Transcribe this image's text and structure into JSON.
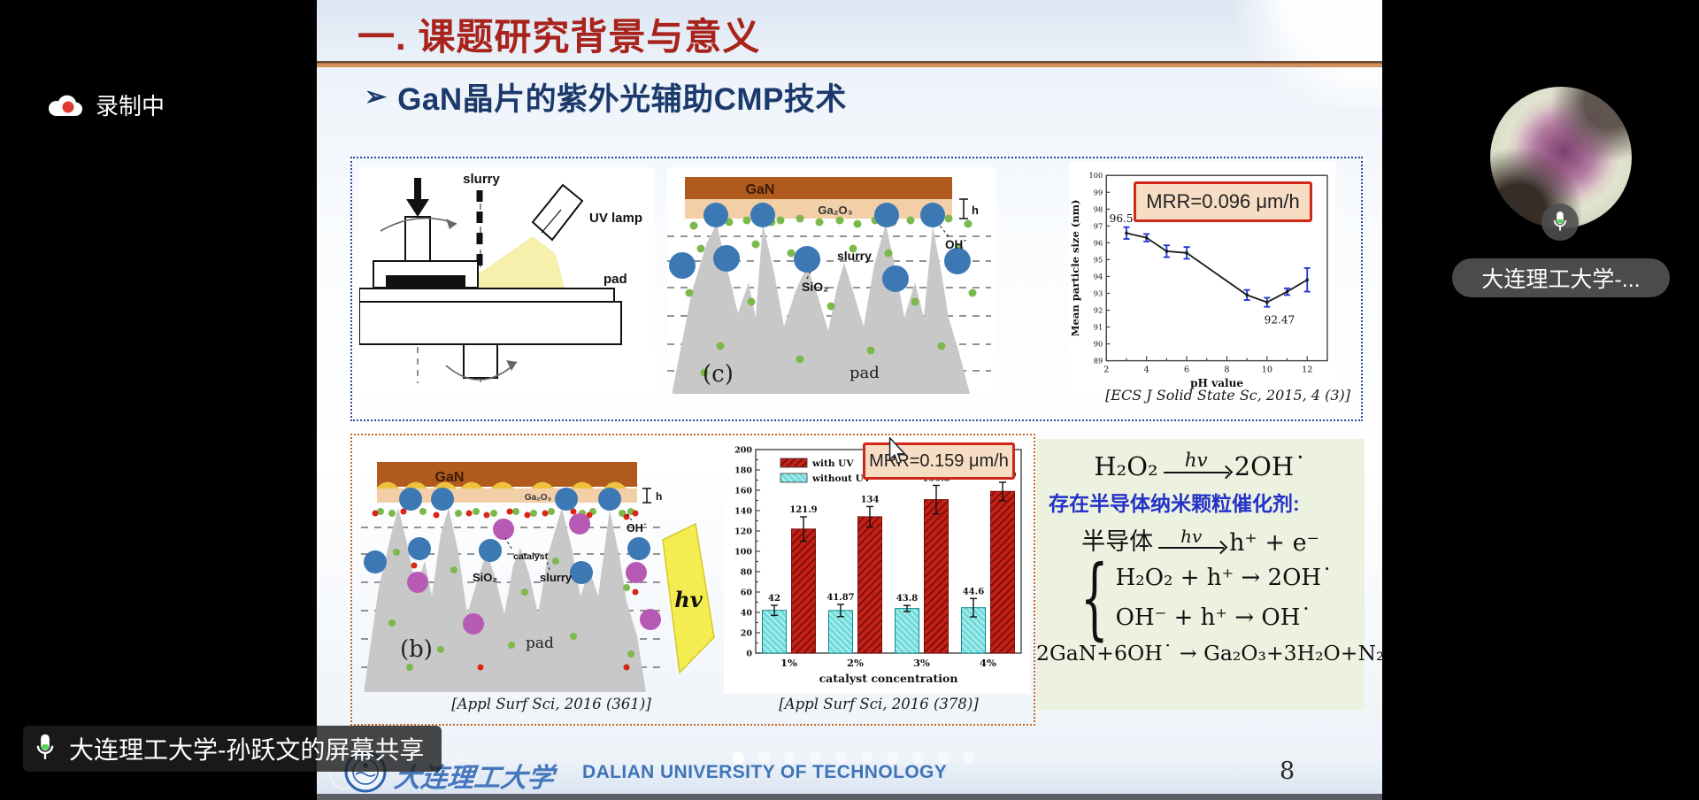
{
  "overlay": {
    "recording_label": "录制中",
    "screen_share_label": "大连理工大学-孙跃文的屏幕共享",
    "participant_label": "大连理工大学-..."
  },
  "slide": {
    "title": "一. 课题研究背景与意义",
    "bullet": "➢",
    "subtitle": "GaN晶片的紫外光辅助CMP技术",
    "top_panel": {
      "citation": "[ECS J Solid State Sc, 2015, 4 (3)]",
      "fig_setup": {
        "slurry": "slurry",
        "uv_lamp": "UV lamp",
        "pad": "pad"
      },
      "fig_c": {
        "gan": "GaN",
        "ga2o3": "Ga₂O₃",
        "h": "h",
        "oh": "OH˙",
        "slurry": "slurry",
        "sio2": "SiO₂",
        "pad": "pad",
        "tag": "(c)"
      }
    },
    "bottom_panel": {
      "citation_left": "[Appl Surf Sci, 2016 (361)]",
      "citation_right": "[Appl Surf Sci, 2016 (378)]",
      "fig_b": {
        "gan": "GaN",
        "ga2o3": "Ga₂O₃",
        "h": "h",
        "oh": "OH˙",
        "catalyst": "catalyst",
        "sio2": "SiO₂",
        "slurry": "slurry",
        "pad": "pad",
        "tag": "(b)",
        "hv": "hv"
      }
    },
    "equations": {
      "eq1_left": "H₂O₂",
      "eq1_over": "hv",
      "eq1_right": "2OH˙",
      "note": "存在半导体纳米颗粒催化剂:",
      "eq2_left": "半导体",
      "eq2_over": "hv",
      "eq2_right": "h⁺ + e⁻",
      "brace": "{",
      "eq3a": "H₂O₂ + h⁺ →  2OH˙",
      "eq3b": "OH⁻ + h⁺ →  OH˙",
      "eq4": "2GaN+6OH˙ → Ga₂O₃+3H₂O+N₂"
    },
    "footer": {
      "university_cn": "大连理工大学",
      "university_en": "DALIAN UNIVERSITY OF TECHNOLOGY",
      "page_number": "8",
      "dot_count": 10
    }
  },
  "chart_data": [
    {
      "type": "line",
      "title": "",
      "xlabel": "pH value",
      "ylabel": "Mean particle size (nm)",
      "xlim": [
        2,
        13
      ],
      "ylim": [
        89,
        100
      ],
      "xticks_labeled": [
        2,
        4,
        6,
        8,
        10,
        12
      ],
      "x": [
        3,
        4,
        5,
        6,
        9,
        10,
        11,
        12
      ],
      "y": [
        96.58,
        96.3,
        95.5,
        95.4,
        92.9,
        92.47,
        93.1,
        93.8
      ],
      "yerr": [
        0.35,
        0.22,
        0.35,
        0.35,
        0.3,
        0.27,
        0.2,
        0.7
      ],
      "point_labels": [
        {
          "x": 3,
          "y": 96.58,
          "text": "96.58"
        },
        {
          "x": 10,
          "y": 92.47,
          "text": "92.47"
        }
      ],
      "annotation": "MRR=0.096 μm/h",
      "grid": false,
      "line_color": "#1a1a1a",
      "error_color": "#2233cc"
    },
    {
      "type": "bar",
      "categories": [
        "1%",
        "2%",
        "3%",
        "4%"
      ],
      "series": [
        {
          "name": "with UV",
          "values": [
            121.9,
            134,
            150.8,
            158.9
          ],
          "errors": [
            12,
            10,
            14,
            9
          ],
          "color": "#c32017"
        },
        {
          "name": "without UV",
          "values": [
            42,
            41.87,
            43.8,
            44.6
          ],
          "errors": [
            5,
            6,
            3,
            9
          ],
          "color": "#72dcdc"
        }
      ],
      "xlabel": "catalyst  concentration",
      "ylabel": "",
      "ylim": [
        0,
        200
      ],
      "ytick_step": 20,
      "legend_position": "top-left",
      "annotation": "MRR=0.159 μm/h"
    }
  ]
}
